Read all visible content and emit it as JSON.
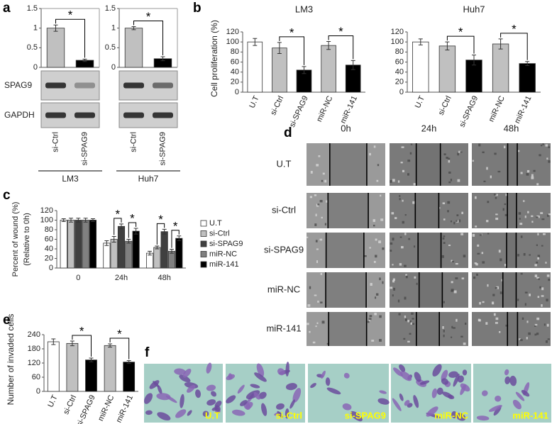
{
  "panel_letters": [
    "a",
    "b",
    "c",
    "d",
    "e",
    "f"
  ],
  "chart_data": [
    {
      "type": "bar",
      "title": "LM3",
      "categories": [
        "si-Ctrl",
        "si-SPAG9"
      ],
      "values": [
        1,
        0.18
      ],
      "errors": [
        0.08,
        0.03
      ],
      "colors": [
        "#c0c0c0",
        "#000000"
      ],
      "ylim": [
        0,
        1.5
      ],
      "yticks": [
        0,
        0.5,
        1,
        1.5
      ],
      "annotations": [
        "*"
      ]
    },
    {
      "type": "bar",
      "title": "Huh7",
      "categories": [
        "si-Ctrl",
        "si-SPAG9"
      ],
      "values": [
        1,
        0.22
      ],
      "errors": [
        0.04,
        0.05
      ],
      "colors": [
        "#c0c0c0",
        "#000000"
      ],
      "ylim": [
        0,
        1.5
      ],
      "yticks": [
        0,
        0.5,
        1,
        1.5
      ],
      "annotations": [
        "*"
      ]
    },
    {
      "type": "bar",
      "title": "LM3",
      "ylabel": "Cell proliferation (%)",
      "categories": [
        "U.T",
        "si-Ctrl",
        "si-SPAG9",
        "miR-NC",
        "miR-141"
      ],
      "values": [
        100,
        88,
        44,
        93,
        54
      ],
      "errors": [
        7,
        11,
        7,
        8,
        9
      ],
      "colors": [
        "#ffffff",
        "#c0c0c0",
        "#000000",
        "#c0c0c0",
        "#000000"
      ],
      "ylim": [
        0,
        120
      ],
      "yticks": [
        0,
        20,
        40,
        60,
        80,
        100,
        120
      ],
      "annotations": [
        "*",
        "*"
      ]
    },
    {
      "type": "bar",
      "title": "Huh7",
      "categories": [
        "U.T",
        "si-Ctrl",
        "si-SPAG9",
        "miR-NC",
        "miR-141"
      ],
      "values": [
        100,
        92,
        64,
        96,
        57
      ],
      "errors": [
        6,
        8,
        10,
        10,
        4
      ],
      "colors": [
        "#ffffff",
        "#c0c0c0",
        "#000000",
        "#c0c0c0",
        "#000000"
      ],
      "ylim": [
        0,
        120
      ],
      "yticks": [
        0,
        20,
        40,
        60,
        80,
        100,
        120
      ],
      "annotations": [
        "*",
        "*"
      ]
    },
    {
      "type": "grouped-bar",
      "ylabel": [
        "Percent of wound (%)",
        "(Relative to 0h)"
      ],
      "categories": [
        "0",
        "24h",
        "48h"
      ],
      "series": [
        {
          "name": "U.T",
          "color": "#ffffff",
          "values": [
            100,
            52,
            31
          ],
          "errors": [
            3,
            5,
            4
          ]
        },
        {
          "name": "si-Ctrl",
          "color": "#c0c0c0",
          "values": [
            100,
            60,
            43
          ],
          "errors": [
            4,
            6,
            3
          ]
        },
        {
          "name": "si-SPAG9",
          "color": "#404040",
          "values": [
            100,
            87,
            76
          ],
          "errors": [
            4,
            5,
            5
          ]
        },
        {
          "name": "miR-NC",
          "color": "#808080",
          "values": [
            100,
            56,
            35
          ],
          "errors": [
            4,
            4,
            4
          ]
        },
        {
          "name": "miR-141",
          "color": "#000000",
          "values": [
            100,
            77,
            62
          ],
          "errors": [
            3,
            6,
            5
          ]
        }
      ],
      "ylim": [
        0,
        120
      ],
      "yticks": [
        0,
        20,
        40,
        60,
        80,
        100,
        120
      ],
      "legend": "right",
      "annotations": [
        "*",
        "*",
        "*",
        "*"
      ]
    },
    {
      "type": "bar",
      "ylabel": "Number of invaded cells",
      "categories": [
        "U.T",
        "si-Ctrl",
        "si-SPAG9",
        "miR-NC",
        "miR-141"
      ],
      "values": [
        210,
        203,
        133,
        194,
        124
      ],
      "errors": [
        12,
        10,
        8,
        7,
        6
      ],
      "colors": [
        "#ffffff",
        "#c0c0c0",
        "#000000",
        "#c0c0c0",
        "#000000"
      ],
      "ylim": [
        0,
        240
      ],
      "yticks": [
        0,
        60,
        120,
        180,
        240
      ],
      "annotations": [
        "*",
        "*"
      ]
    }
  ],
  "blot": {
    "rows": [
      "SPAG9",
      "GAPDH"
    ]
  },
  "wound": {
    "columns": [
      "0h",
      "24h",
      "48h"
    ],
    "rows": [
      "U.T",
      "si-Ctrl",
      "si-SPAG9",
      "miR-NC",
      "miR-141"
    ]
  },
  "invasion": {
    "labels": [
      "U.T",
      "si-Ctrl",
      "si-SPAG9",
      "miR-NC",
      "miR-141"
    ]
  }
}
